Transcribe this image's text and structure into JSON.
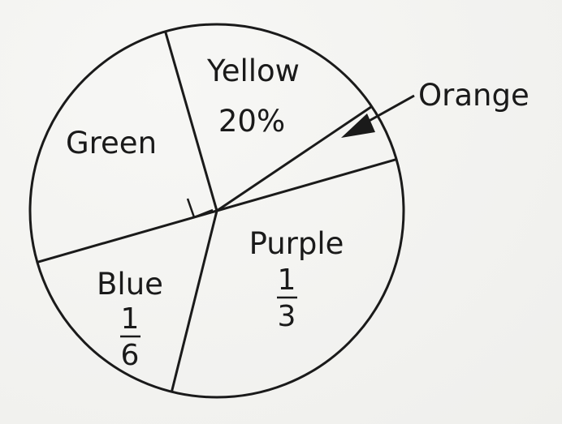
{
  "chart_data": {
    "type": "pie",
    "title": "",
    "slices": [
      {
        "key": "yellow",
        "label": "Yellow",
        "value_text": "20%",
        "value": 0.2
      },
      {
        "key": "orange",
        "label": "Orange",
        "value_text": "",
        "value": 0.05
      },
      {
        "key": "purple",
        "label": "Purple",
        "value_text": "",
        "numerator": "1",
        "denominator": "3",
        "value": 0.3333
      },
      {
        "key": "blue",
        "label": "Blue",
        "value_text": "",
        "numerator": "1",
        "denominator": "6",
        "value": 0.1667
      },
      {
        "key": "green",
        "label": "Green",
        "value_text": "",
        "value": 0.25
      }
    ],
    "annotations": [
      "right-angle marker between Green and Yellow",
      "arrow pointing to Orange slice"
    ]
  },
  "colors": {
    "line": "#1a1a1a",
    "fill": "#f7f7f5"
  }
}
